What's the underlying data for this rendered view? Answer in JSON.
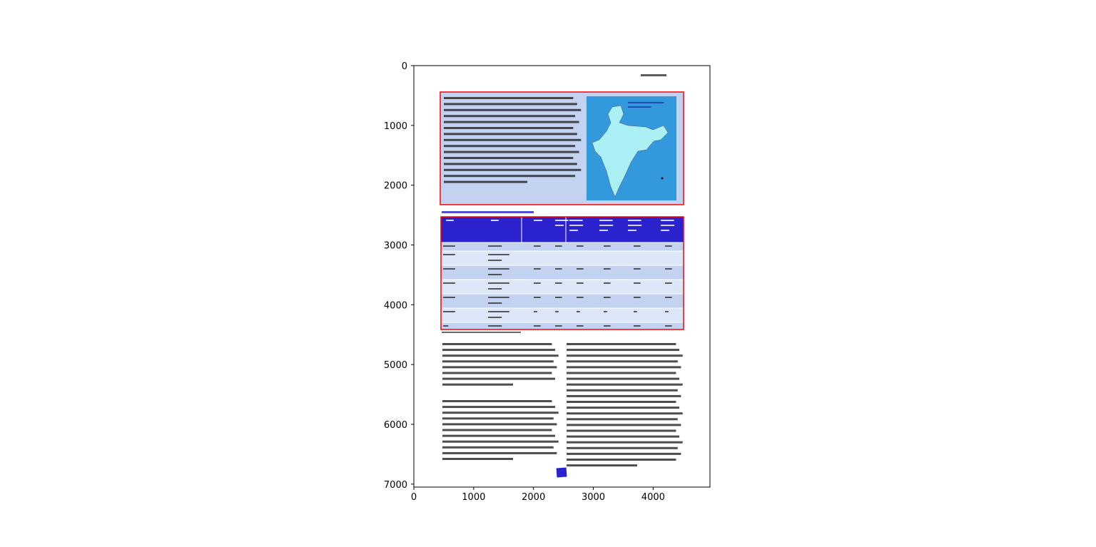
{
  "axes": {
    "x_ticks": [
      "0",
      "1000",
      "2000",
      "3000",
      "4000"
    ],
    "y_ticks": [
      "0",
      "1000",
      "2000",
      "3000",
      "4000",
      "5000",
      "6000",
      "7000"
    ],
    "x_range": [
      0,
      4950
    ],
    "y_range": [
      7050,
      0
    ]
  },
  "document": {
    "colors": {
      "highlight_box": "#ff0000",
      "panel_fill": "#c3d2f0",
      "table_header": "#2a22cc",
      "table_row_a": "#c3d2f0",
      "table_row_b": "#dce6f6",
      "map_background": "#3399dd",
      "map_land": "#aaf0f5",
      "link_text": "#2222cc",
      "page_number_badge": "#2a22cc"
    },
    "image_icon": "india-map-image",
    "table": {
      "header_cells": 8,
      "rows": 7
    }
  }
}
